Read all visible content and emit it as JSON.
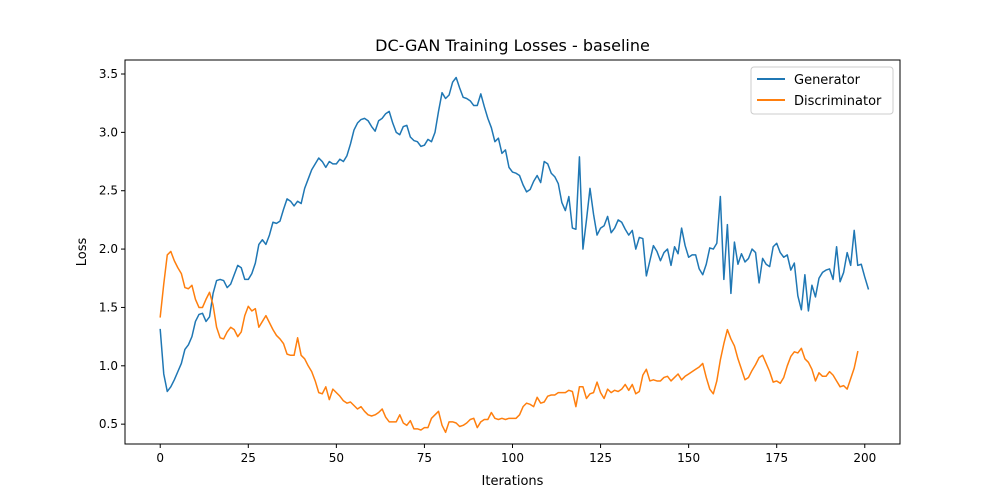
{
  "chart_data": {
    "type": "line",
    "title": "DC-GAN Training Losses - baseline",
    "xlabel": "Iterations",
    "ylabel": "Loss",
    "xlim": [
      -10,
      210
    ],
    "ylim": [
      0.33,
      3.62
    ],
    "xticks": [
      0,
      25,
      50,
      75,
      100,
      125,
      150,
      175,
      200
    ],
    "yticks": [
      0.5,
      1.0,
      1.5,
      2.0,
      2.5,
      3.0,
      3.5
    ],
    "xtick_labels": [
      "0",
      "25",
      "50",
      "75",
      "100",
      "125",
      "150",
      "175",
      "200"
    ],
    "ytick_labels": [
      "0.5",
      "1.0",
      "1.5",
      "2.0",
      "2.5",
      "3.0",
      "3.5"
    ],
    "grid": false,
    "legend_position": "top-right",
    "series": [
      {
        "name": "Generator",
        "color": "#1f77b4",
        "values": [
          1.31,
          0.93,
          0.78,
          0.82,
          0.88,
          0.95,
          1.02,
          1.14,
          1.18,
          1.25,
          1.38,
          1.44,
          1.45,
          1.38,
          1.42,
          1.62,
          1.73,
          1.74,
          1.73,
          1.67,
          1.7,
          1.78,
          1.86,
          1.84,
          1.74,
          1.74,
          1.79,
          1.88,
          2.04,
          2.08,
          2.04,
          2.12,
          2.23,
          2.22,
          2.24,
          2.34,
          2.43,
          2.41,
          2.37,
          2.41,
          2.39,
          2.52,
          2.6,
          2.68,
          2.73,
          2.78,
          2.75,
          2.7,
          2.75,
          2.73,
          2.73,
          2.77,
          2.75,
          2.8,
          2.9,
          3.02,
          3.08,
          3.11,
          3.12,
          3.1,
          3.05,
          3.01,
          3.1,
          3.12,
          3.16,
          3.18,
          3.08,
          3.0,
          2.98,
          3.05,
          3.06,
          2.96,
          2.93,
          2.92,
          2.88,
          2.89,
          2.94,
          2.92,
          3.0,
          3.18,
          3.34,
          3.29,
          3.32,
          3.43,
          3.47,
          3.38,
          3.3,
          3.29,
          3.27,
          3.23,
          3.23,
          3.33,
          3.22,
          3.12,
          3.04,
          2.92,
          2.95,
          2.82,
          2.85,
          2.7,
          2.66,
          2.65,
          2.63,
          2.55,
          2.49,
          2.51,
          2.58,
          2.63,
          2.57,
          2.75,
          2.73,
          2.65,
          2.62,
          2.56,
          2.4,
          2.33,
          2.45,
          2.18,
          2.17,
          2.79,
          2.0,
          2.25,
          2.52,
          2.3,
          2.12,
          2.18,
          2.2,
          2.28,
          2.14,
          2.18,
          2.25,
          2.23,
          2.17,
          2.12,
          2.16,
          2.0,
          2.1,
          2.09,
          1.77,
          1.9,
          2.03,
          1.98,
          1.9,
          1.97,
          2.0,
          1.86,
          2.02,
          1.96,
          2.18,
          2.03,
          1.93,
          1.95,
          1.95,
          1.83,
          1.78,
          1.87,
          2.01,
          2.0,
          2.05,
          2.45,
          1.74,
          2.21,
          1.62,
          2.06,
          1.87,
          1.96,
          1.89,
          1.92,
          2.0,
          1.97,
          1.71,
          1.92,
          1.87,
          1.85,
          2.02,
          2.05,
          1.97,
          1.93,
          1.95,
          1.82,
          1.88,
          1.6,
          1.48,
          1.78,
          1.47,
          1.69,
          1.59,
          1.75,
          1.8,
          1.82,
          1.83,
          1.74,
          2.02,
          1.72,
          1.8,
          1.97,
          1.86,
          2.16,
          1.86,
          1.87,
          1.76,
          1.66
        ]
      },
      {
        "name": "Discriminator",
        "color": "#ff7f0e",
        "values": [
          1.42,
          1.7,
          1.95,
          1.98,
          1.9,
          1.84,
          1.79,
          1.67,
          1.66,
          1.69,
          1.57,
          1.5,
          1.5,
          1.57,
          1.63,
          1.52,
          1.33,
          1.24,
          1.23,
          1.29,
          1.33,
          1.31,
          1.25,
          1.29,
          1.43,
          1.51,
          1.47,
          1.49,
          1.33,
          1.38,
          1.43,
          1.37,
          1.31,
          1.26,
          1.23,
          1.19,
          1.1,
          1.09,
          1.09,
          1.24,
          1.09,
          1.06,
          1.0,
          0.95,
          0.87,
          0.77,
          0.76,
          0.82,
          0.71,
          0.8,
          0.77,
          0.74,
          0.7,
          0.68,
          0.69,
          0.66,
          0.63,
          0.65,
          0.61,
          0.58,
          0.57,
          0.58,
          0.6,
          0.63,
          0.56,
          0.52,
          0.52,
          0.52,
          0.58,
          0.51,
          0.49,
          0.53,
          0.46,
          0.46,
          0.45,
          0.47,
          0.47,
          0.55,
          0.58,
          0.61,
          0.49,
          0.43,
          0.52,
          0.52,
          0.51,
          0.48,
          0.49,
          0.51,
          0.54,
          0.55,
          0.47,
          0.52,
          0.54,
          0.54,
          0.6,
          0.55,
          0.54,
          0.55,
          0.54,
          0.55,
          0.55,
          0.55,
          0.58,
          0.65,
          0.68,
          0.67,
          0.65,
          0.73,
          0.68,
          0.69,
          0.74,
          0.75,
          0.75,
          0.77,
          0.77,
          0.77,
          0.79,
          0.78,
          0.65,
          0.82,
          0.82,
          0.72,
          0.76,
          0.77,
          0.86,
          0.77,
          0.72,
          0.8,
          0.77,
          0.79,
          0.78,
          0.8,
          0.84,
          0.79,
          0.84,
          0.76,
          0.78,
          0.92,
          0.97,
          0.87,
          0.88,
          0.87,
          0.87,
          0.9,
          0.91,
          0.87,
          0.9,
          0.93,
          0.88,
          0.91,
          0.93,
          0.95,
          0.97,
          0.99,
          1.02,
          0.9,
          0.8,
          0.76,
          0.87,
          1.05,
          1.19,
          1.31,
          1.23,
          1.17,
          1.06,
          0.97,
          0.88,
          0.9,
          0.96,
          1.01,
          1.07,
          1.09,
          1.02,
          0.95,
          0.86,
          0.87,
          0.85,
          0.9,
          1.0,
          1.08,
          1.12,
          1.11,
          1.15,
          1.06,
          1.03,
          0.97,
          0.87,
          0.94,
          0.91,
          0.91,
          0.95,
          0.92,
          0.87,
          0.82,
          0.83,
          0.8,
          0.89,
          0.98,
          1.12
        ]
      }
    ]
  }
}
